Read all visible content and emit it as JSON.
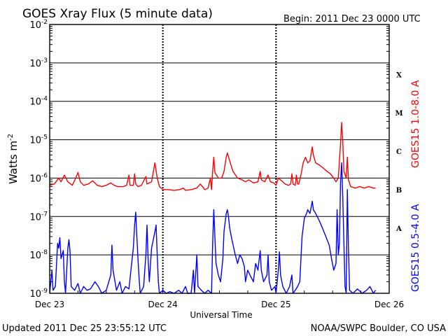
{
  "chart_data": {
    "type": "line",
    "title": "GOES Xray Flux (5 minute data)",
    "begin_label": "Begin:  2011 Dec 23 0000 UTC",
    "xlabel": "Universal Time",
    "ylabel": {
      "main": "Watts m",
      "exponent": "-2"
    },
    "x_ticks": [
      "Dec 23",
      "Dec 24",
      "Dec 25",
      "Dec 26"
    ],
    "x_range_days": [
      0,
      3
    ],
    "y_scale": "log",
    "ylim": [
      1e-09,
      0.01
    ],
    "y_ticks": [
      {
        "base": "10",
        "exp": "-9",
        "value": 1e-09
      },
      {
        "base": "10",
        "exp": "-8",
        "value": 1e-08
      },
      {
        "base": "10",
        "exp": "-7",
        "value": 1e-07
      },
      {
        "base": "10",
        "exp": "-6",
        "value": 1e-06
      },
      {
        "base": "10",
        "exp": "-5",
        "value": 1e-05
      },
      {
        "base": "10",
        "exp": "-4",
        "value": 0.0001
      },
      {
        "base": "10",
        "exp": "-3",
        "value": 0.001
      },
      {
        "base": "10",
        "exp": "-2",
        "value": 0.01
      }
    ],
    "flare_classes": [
      {
        "label": "X",
        "value": 0.0005
      },
      {
        "label": "M",
        "value": 5e-05
      },
      {
        "label": "C",
        "value": 5e-06
      },
      {
        "label": "B",
        "value": 5e-07
      },
      {
        "label": "A",
        "value": 5e-08
      }
    ],
    "grid": true,
    "series": [
      {
        "name": "GOES15 1.0-8.0 A",
        "color": "#ff0000",
        "points": [
          [
            0.0,
            6.5e-07
          ],
          [
            0.04,
            7e-07
          ],
          [
            0.08,
            1e-06
          ],
          [
            0.1,
            8e-07
          ],
          [
            0.13,
            1.2e-06
          ],
          [
            0.16,
            8e-07
          ],
          [
            0.2,
            6.5e-07
          ],
          [
            0.23,
            1e-06
          ],
          [
            0.25,
            1.4e-06
          ],
          [
            0.27,
            8e-07
          ],
          [
            0.3,
            6.5e-07
          ],
          [
            0.34,
            7e-07
          ],
          [
            0.38,
            8.5e-07
          ],
          [
            0.42,
            6.5e-07
          ],
          [
            0.46,
            6e-07
          ],
          [
            0.5,
            6.5e-07
          ],
          [
            0.54,
            7.5e-07
          ],
          [
            0.57,
            6.5e-07
          ],
          [
            0.6,
            6e-07
          ],
          [
            0.65,
            6e-07
          ],
          [
            0.68,
            6.5e-07
          ],
          [
            0.7,
            1.2e-06
          ],
          [
            0.71,
            6.5e-07
          ],
          [
            0.74,
            6.5e-07
          ],
          [
            0.75,
            1.3e-06
          ],
          [
            0.76,
            7e-07
          ],
          [
            0.78,
            6e-07
          ],
          [
            0.81,
            6.5e-07
          ],
          [
            0.85,
            1.1e-06
          ],
          [
            0.86,
            7e-07
          ],
          [
            0.9,
            8e-07
          ],
          [
            0.93,
            2.5e-06
          ],
          [
            0.95,
            1e-06
          ],
          [
            0.97,
            6e-07
          ],
          [
            1.0,
            5e-07
          ],
          [
            1.05,
            5e-07
          ],
          [
            1.1,
            4.8e-07
          ],
          [
            1.15,
            5e-07
          ],
          [
            1.18,
            5.5e-07
          ],
          [
            1.2,
            4.8e-07
          ],
          [
            1.25,
            5e-07
          ],
          [
            1.3,
            5.5e-07
          ],
          [
            1.33,
            7e-07
          ],
          [
            1.35,
            6e-07
          ],
          [
            1.37,
            5e-07
          ],
          [
            1.4,
            5.5e-07
          ],
          [
            1.42,
            1e-06
          ],
          [
            1.43,
            5e-07
          ],
          [
            1.44,
            1.5e-06
          ],
          [
            1.45,
            3.5e-06
          ],
          [
            1.46,
            1.4e-06
          ],
          [
            1.49,
            1e-06
          ],
          [
            1.52,
            1e-06
          ],
          [
            1.54,
            1.5e-06
          ],
          [
            1.56,
            3.5e-06
          ],
          [
            1.57,
            4.5e-06
          ],
          [
            1.59,
            2.8e-06
          ],
          [
            1.62,
            1.5e-06
          ],
          [
            1.66,
            1e-06
          ],
          [
            1.7,
            9e-07
          ],
          [
            1.73,
            8e-07
          ],
          [
            1.76,
            9e-07
          ],
          [
            1.8,
            7.5e-07
          ],
          [
            1.84,
            8e-07
          ],
          [
            1.86,
            1.5e-06
          ],
          [
            1.87,
            9e-07
          ],
          [
            1.9,
            8e-07
          ],
          [
            1.93,
            1.2e-06
          ],
          [
            1.95,
            8e-07
          ],
          [
            1.98,
            7.5e-07
          ],
          [
            2.0,
            6.5e-07
          ],
          [
            2.02,
            1e-06
          ],
          [
            2.05,
            8.5e-07
          ],
          [
            2.08,
            7e-07
          ],
          [
            2.11,
            6.5e-07
          ],
          [
            2.13,
            7e-07
          ],
          [
            2.14,
            1.3e-06
          ],
          [
            2.15,
            7e-07
          ],
          [
            2.17,
            6.5e-07
          ],
          [
            2.18,
            1.2e-06
          ],
          [
            2.19,
            7e-07
          ],
          [
            2.2,
            7e-07
          ],
          [
            2.22,
            1.2e-06
          ],
          [
            2.24,
            2.5e-06
          ],
          [
            2.26,
            3.5e-06
          ],
          [
            2.28,
            2.5e-06
          ],
          [
            2.3,
            2.8e-06
          ],
          [
            2.32,
            6.5e-06
          ],
          [
            2.33,
            4e-06
          ],
          [
            2.35,
            2.5e-06
          ],
          [
            2.38,
            2.2e-06
          ],
          [
            2.42,
            1.8e-06
          ],
          [
            2.45,
            1.5e-06
          ],
          [
            2.48,
            1.3e-06
          ],
          [
            2.51,
            1e-06
          ],
          [
            2.53,
            8e-07
          ],
          [
            2.55,
            1e-06
          ],
          [
            2.56,
            2.8e-06
          ],
          [
            2.57,
            8e-06
          ],
          [
            2.58,
            2.8e-05
          ],
          [
            2.59,
            9e-06
          ],
          [
            2.6,
            1.5e-06
          ],
          [
            2.62,
            1e-06
          ],
          [
            2.63,
            3.5e-06
          ],
          [
            2.64,
            9e-07
          ],
          [
            2.66,
            6e-07
          ],
          [
            2.7,
            5.5e-07
          ],
          [
            2.74,
            6e-07
          ],
          [
            2.78,
            5.5e-07
          ],
          [
            2.82,
            6e-07
          ],
          [
            2.86,
            5.5e-07
          ],
          [
            2.88,
            5.5e-07
          ]
        ]
      },
      {
        "name": "GOES15 0.5-4.0 A",
        "color": "#0000ff",
        "points": [
          [
            0.0,
            1e-09
          ],
          [
            0.02,
            4e-09
          ],
          [
            0.03,
            1.2e-09
          ],
          [
            0.05,
            1.5e-09
          ],
          [
            0.07,
            2e-08
          ],
          [
            0.08,
            1.5e-08
          ],
          [
            0.09,
            2.8e-08
          ],
          [
            0.1,
            8e-09
          ],
          [
            0.12,
            1.3e-08
          ],
          [
            0.13,
            2e-09
          ],
          [
            0.14,
            1e-09
          ],
          [
            0.15,
            4e-09
          ],
          [
            0.16,
            1.5e-08
          ],
          [
            0.17,
            2.5e-08
          ],
          [
            0.18,
            1.2e-08
          ],
          [
            0.19,
            1.5e-09
          ],
          [
            0.22,
            1.2e-09
          ],
          [
            0.25,
            1.8e-09
          ],
          [
            0.27,
            1e-09
          ],
          [
            0.3,
            1.5e-09
          ],
          [
            0.33,
            1.2e-09
          ],
          [
            0.36,
            1.3e-09
          ],
          [
            0.4,
            2e-09
          ],
          [
            0.43,
            1.5e-09
          ],
          [
            0.46,
            1e-09
          ],
          [
            0.5,
            1.2e-09
          ],
          [
            0.54,
            3e-09
          ],
          [
            0.55,
            1.8e-08
          ],
          [
            0.56,
            4e-09
          ],
          [
            0.59,
            1.2e-09
          ],
          [
            0.62,
            2e-09
          ],
          [
            0.64,
            1e-09
          ],
          [
            0.67,
            1.5e-09
          ],
          [
            0.7,
            1.3e-09
          ],
          [
            0.74,
            1.6e-08
          ],
          [
            0.75,
            6e-08
          ],
          [
            0.76,
            1.3e-07
          ],
          [
            0.77,
            3e-08
          ],
          [
            0.78,
            8e-09
          ],
          [
            0.79,
            2.5e-09
          ],
          [
            0.8,
            1e-09
          ],
          [
            0.83,
            1.5e-09
          ],
          [
            0.85,
            1e-08
          ],
          [
            0.86,
            6e-08
          ],
          [
            0.87,
            8e-09
          ],
          [
            0.88,
            2e-09
          ],
          [
            0.9,
            1.5e-08
          ],
          [
            0.93,
            4e-08
          ],
          [
            0.94,
            6e-08
          ],
          [
            0.95,
            1e-08
          ],
          [
            0.96,
            2e-09
          ],
          [
            0.97,
            1e-09
          ],
          [
            1.0,
            1.2e-09
          ],
          [
            1.03,
            1e-09
          ],
          [
            1.06,
            1.1e-09
          ],
          [
            1.1,
            1e-09
          ],
          [
            1.14,
            1.2e-09
          ],
          [
            1.17,
            1e-09
          ],
          [
            1.2,
            1.5e-09
          ],
          [
            1.22,
            1e-09
          ],
          [
            1.25,
            1e-09
          ],
          [
            1.27,
            4e-09
          ],
          [
            1.28,
            1e-09
          ],
          [
            1.3,
            1e-08
          ],
          [
            1.31,
            1.5e-09
          ],
          [
            1.34,
            1.2e-09
          ],
          [
            1.37,
            1e-09
          ],
          [
            1.4,
            1.2e-09
          ],
          [
            1.43,
            1e-09
          ],
          [
            1.44,
            2e-08
          ],
          [
            1.45,
            1.5e-07
          ],
          [
            1.46,
            3e-08
          ],
          [
            1.47,
            6e-09
          ],
          [
            1.49,
            3e-09
          ],
          [
            1.51,
            2e-09
          ],
          [
            1.53,
            8e-09
          ],
          [
            1.54,
            4e-08
          ],
          [
            1.56,
            1.2e-07
          ],
          [
            1.57,
            1.5e-07
          ],
          [
            1.58,
            1e-07
          ],
          [
            1.59,
            5e-08
          ],
          [
            1.61,
            2.5e-08
          ],
          [
            1.64,
            1e-08
          ],
          [
            1.66,
            6e-09
          ],
          [
            1.68,
            1e-08
          ],
          [
            1.7,
            8e-09
          ],
          [
            1.72,
            5e-09
          ],
          [
            1.73,
            2e-09
          ],
          [
            1.75,
            4e-09
          ],
          [
            1.77,
            3e-09
          ],
          [
            1.8,
            2e-09
          ],
          [
            1.82,
            6e-09
          ],
          [
            1.84,
            4e-09
          ],
          [
            1.86,
            1.3e-08
          ],
          [
            1.87,
            4e-09
          ],
          [
            1.89,
            2e-09
          ],
          [
            1.92,
            3e-09
          ],
          [
            1.93,
            1e-08
          ],
          [
            1.94,
            2e-09
          ],
          [
            1.96,
            1.2e-09
          ],
          [
            1.99,
            1.5e-09
          ],
          [
            2.0,
            1e-09
          ],
          [
            2.02,
            4e-09
          ],
          [
            2.03,
            1.2e-08
          ],
          [
            2.04,
            3e-09
          ],
          [
            2.06,
            1.5e-09
          ],
          [
            2.09,
            1e-09
          ],
          [
            2.12,
            1.5e-09
          ],
          [
            2.14,
            3e-09
          ],
          [
            2.15,
            1e-09
          ],
          [
            2.17,
            1.2e-09
          ],
          [
            2.19,
            1.5e-09
          ],
          [
            2.21,
            2e-09
          ],
          [
            2.23,
            3e-08
          ],
          [
            2.25,
            9e-08
          ],
          [
            2.27,
            1.2e-07
          ],
          [
            2.28,
            1.5e-07
          ],
          [
            2.3,
            1.2e-07
          ],
          [
            2.32,
            2.5e-07
          ],
          [
            2.33,
            1.5e-07
          ],
          [
            2.35,
            1.2e-07
          ],
          [
            2.38,
            8e-08
          ],
          [
            2.41,
            5e-08
          ],
          [
            2.44,
            3e-08
          ],
          [
            2.47,
            1.8e-08
          ],
          [
            2.49,
            8e-09
          ],
          [
            2.51,
            4e-09
          ],
          [
            2.53,
            6e-09
          ],
          [
            2.54,
            1.5e-07
          ],
          [
            2.55,
            1e-08
          ],
          [
            2.56,
            2e-08
          ],
          [
            2.57,
            8e-07
          ],
          [
            2.58,
            2.5e-06
          ],
          [
            2.59,
            3e-07
          ],
          [
            2.6,
            2e-08
          ],
          [
            2.61,
            1.5e-09
          ],
          [
            2.62,
            1e-09
          ],
          [
            2.63,
            5e-07
          ],
          [
            2.64,
            1.5e-08
          ],
          [
            2.65,
            1.2e-09
          ],
          [
            2.68,
            1e-09
          ],
          [
            2.72,
            1.3e-09
          ],
          [
            2.76,
            1e-09
          ],
          [
            2.8,
            1.2e-09
          ],
          [
            2.83,
            1.5e-09
          ],
          [
            2.86,
            1e-09
          ],
          [
            2.88,
            1.2e-09
          ]
        ]
      }
    ]
  },
  "footer": {
    "updated": "Updated 2011 Dec 25 23:55:12 UTC",
    "credit": "NOAA/SWPC Boulder, CO USA"
  }
}
